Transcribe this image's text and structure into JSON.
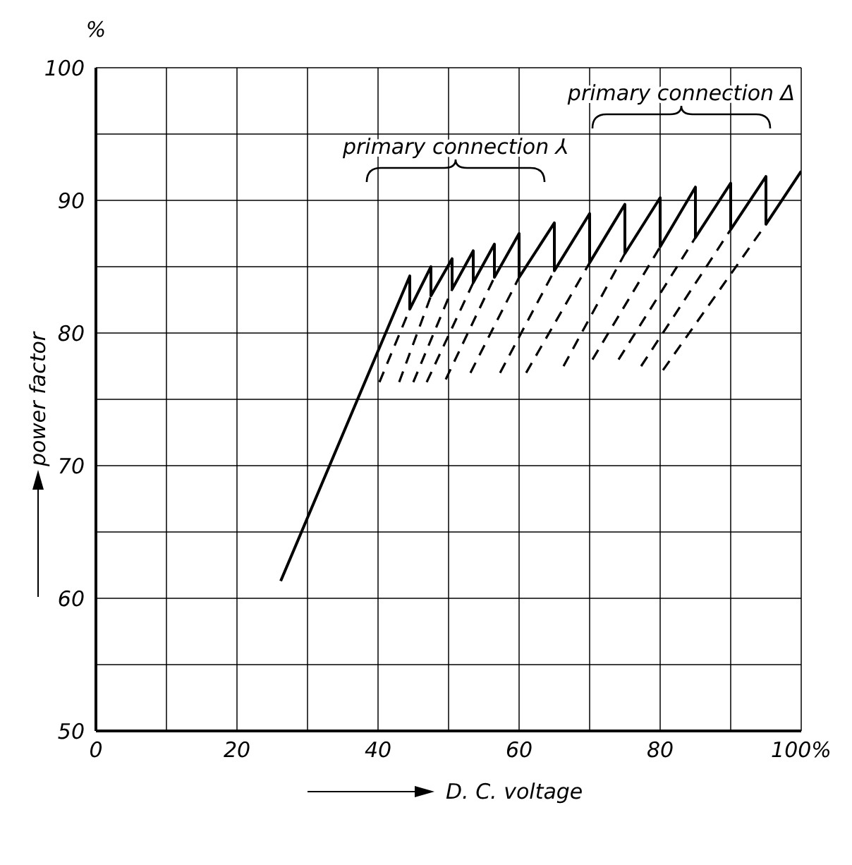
{
  "chart_data": {
    "type": "line",
    "xlabel": "D. C. voltage",
    "ylabel": "power factor",
    "xlim": [
      0,
      100
    ],
    "ylim": [
      50,
      100
    ],
    "xticks": [
      0,
      {
        "value": 10,
        "label": null
      },
      20,
      {
        "value": 30,
        "label": null
      },
      40,
      {
        "value": 50,
        "label": null
      },
      60,
      {
        "value": 70,
        "label": null
      },
      80,
      {
        "value": 90,
        "label": null
      },
      {
        "value": 100,
        "label": "100%"
      }
    ],
    "yticks": [
      50,
      {
        "value": 55,
        "label": null
      },
      60,
      {
        "value": 65,
        "label": null
      },
      70,
      {
        "value": 75,
        "label": null
      },
      80,
      {
        "value": 85,
        "label": null
      },
      90,
      {
        "value": 95,
        "label": null
      },
      100
    ],
    "grid": true,
    "marker": "none",
    "annotations": [
      "%",
      "primary connection ⅄",
      "primary connection Δ"
    ],
    "series": [
      {
        "color": "#000000",
        "line_style": "solid",
        "x": [
          26.2,
          44.5,
          44.5,
          47.5,
          47.5,
          50.5,
          50.5,
          53.5,
          53.5,
          56.5,
          56.5,
          60,
          60,
          65,
          65,
          70,
          70,
          75,
          75,
          80,
          80,
          85,
          85,
          90,
          90,
          95,
          95,
          100
        ],
        "values": [
          61.3,
          84.3,
          81.8,
          85,
          82.8,
          85.6,
          83.3,
          86.2,
          83.8,
          86.7,
          84.2,
          87.5,
          84.2,
          88.3,
          84.7,
          89,
          85.3,
          89.7,
          86,
          90.2,
          86.5,
          91,
          87.2,
          91.3,
          87.8,
          91.8,
          88.2,
          92.2
        ]
      },
      {
        "color": "#000000",
        "line_style": "dashed",
        "x": [
          40.2,
          44.5
        ],
        "values": [
          76.3,
          81.8
        ]
      },
      {
        "color": "#000000",
        "line_style": "dashed",
        "x": [
          43,
          47.5
        ],
        "values": [
          76.3,
          82.8
        ]
      },
      {
        "color": "#000000",
        "line_style": "dashed",
        "x": [
          45,
          50.5
        ],
        "values": [
          76.3,
          83.3
        ]
      },
      {
        "color": "#000000",
        "line_style": "dashed",
        "x": [
          46.9,
          53.5
        ],
        "values": [
          76.3,
          83.8
        ]
      },
      {
        "color": "#000000",
        "line_style": "dashed",
        "x": [
          49.6,
          56.5
        ],
        "values": [
          76.5,
          84.2
        ]
      },
      {
        "color": "#000000",
        "line_style": "dashed",
        "x": [
          53.1,
          60
        ],
        "values": [
          77,
          84.2
        ]
      },
      {
        "color": "#000000",
        "line_style": "dashed",
        "x": [
          57.3,
          65
        ],
        "values": [
          77,
          84.7
        ]
      },
      {
        "color": "#000000",
        "line_style": "dashed",
        "x": [
          61,
          70
        ],
        "values": [
          77,
          85.3
        ]
      },
      {
        "color": "#000000",
        "line_style": "dashed",
        "x": [
          66.3,
          75
        ],
        "values": [
          77.5,
          86
        ]
      },
      {
        "color": "#000000",
        "line_style": "dashed",
        "x": [
          70.4,
          80
        ],
        "values": [
          78,
          86.5
        ]
      },
      {
        "color": "#000000",
        "line_style": "dashed",
        "x": [
          74.1,
          85
        ],
        "values": [
          78,
          87.2
        ]
      },
      {
        "color": "#000000",
        "line_style": "dashed",
        "x": [
          77.3,
          90
        ],
        "values": [
          77.5,
          87.8
        ]
      },
      {
        "color": "#000000",
        "line_style": "dashed",
        "x": [
          80.4,
          95
        ],
        "values": [
          77.2,
          88.2
        ]
      }
    ]
  }
}
